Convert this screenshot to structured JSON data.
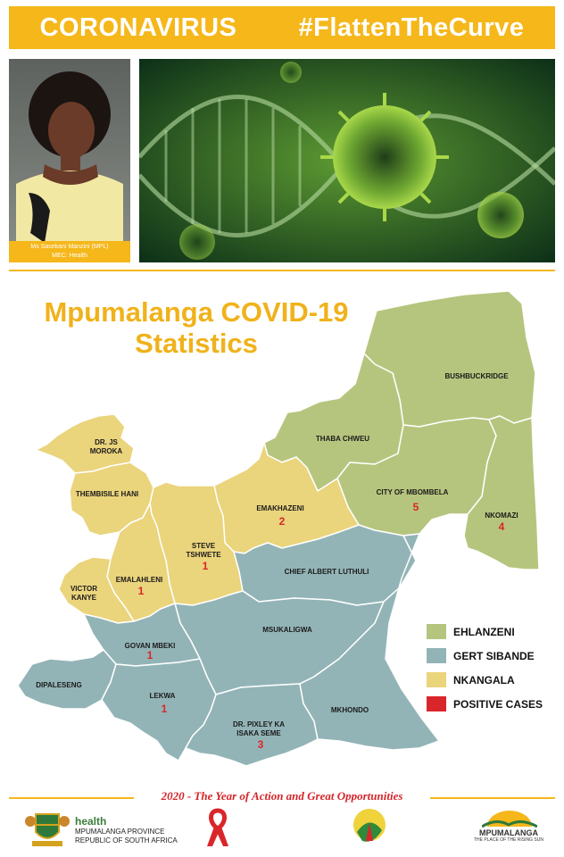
{
  "banner": {
    "left": "CORONAVIRUS",
    "right": "#FlattenTheCurve"
  },
  "photo": {
    "caption_name": "Ms Sasekani Manzini (MPL)",
    "caption_role": "MEC: Health"
  },
  "title": {
    "line1": "Mpumalanga COVID-19",
    "line2": "Statistics"
  },
  "colors": {
    "ehlanzeni": "#b6c57e",
    "gert_sibande": "#93b4b6",
    "nkangala": "#ead47c",
    "positive_cases": "#d9262b",
    "accent": "#f5b71a"
  },
  "municipalities": {
    "bushbuckridge": {
      "name": "BUSHBUCKRIDGE"
    },
    "thaba_chweu": {
      "name": "THABA CHWEU"
    },
    "city_of_mbombela": {
      "name": "CITY OF MBOMBELA",
      "cases": "5"
    },
    "nkomazi": {
      "name": "NKOMAZI",
      "cases": "4"
    },
    "dr_js_moroka": {
      "line1": "DR. JS",
      "line2": "MOROKA"
    },
    "thembisile_hani": {
      "name": "THEMBISILE HANI"
    },
    "emakhazeni": {
      "name": "EMAKHAZENI",
      "cases": "2"
    },
    "steve_tshwete": {
      "line1": "STEVE",
      "line2": "TSHWETE",
      "cases": "1"
    },
    "emalahleni": {
      "name": "EMALAHLENI",
      "cases": "1"
    },
    "victor_khanye": {
      "line1": "VICTOR",
      "line2": "KANYE"
    },
    "chief_albert_luthuli": {
      "name": "CHIEF ALBERT LUTHULI"
    },
    "msukaligwa": {
      "name": "MSUKALIGWA"
    },
    "govan_mbeki": {
      "name": "GOVAN MBEKI",
      "cases": "1"
    },
    "dipaleseng": {
      "name": "DIPALESENG"
    },
    "lekwa": {
      "name": "LEKWA",
      "cases": "1"
    },
    "dr_pixley_ka_isaka_seme": {
      "line1": "DR. PIXLEY KA",
      "line2": "ISAKA SEME",
      "cases": "3"
    },
    "mkhondo": {
      "name": "MKHONDO"
    }
  },
  "legend": [
    {
      "label": "EHLANZENI",
      "color": "#b6c57e"
    },
    {
      "label": "GERT SIBANDE",
      "color": "#93b4b6"
    },
    {
      "label": "NKANGALA",
      "color": "#ead47c"
    },
    {
      "label": "POSITIVE CASES",
      "color": "#d9262b"
    }
  ],
  "footer": {
    "tagline": "2020 - The Year of Action and Great Opportunities",
    "health_word": "health",
    "health_line1": "MPUMALANGA PROVINCE",
    "health_line2": "REPUBLIC OF SOUTH AFRICA",
    "mp_logo": "MPUMALANGA",
    "mp_logo_sub": "THE PLACE OF THE RISING SUN"
  }
}
